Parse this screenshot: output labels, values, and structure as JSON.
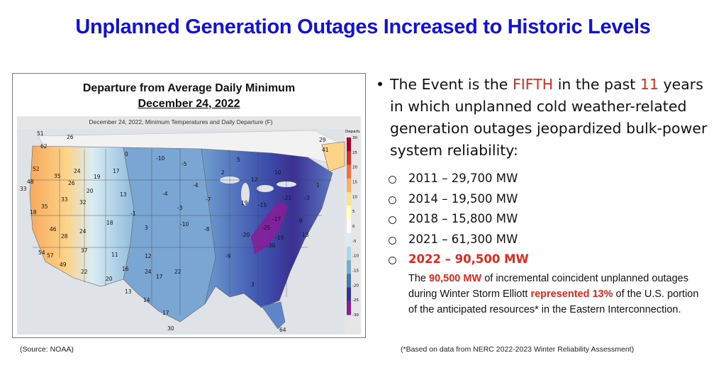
{
  "title": "Unplanned Generation Outages Increased to Historic Levels",
  "map": {
    "heading_line1": "Departure from Average Daily Minimum",
    "heading_line2": "December 24, 2022",
    "subtitle": "December 24, 2022, Minimum Temperatures and Daily Departure (F)",
    "legend_title": "Departure",
    "legend_ticks": [
      "30",
      "25",
      "20",
      "15",
      "10",
      "5",
      "0",
      "-5",
      "-10",
      "-15",
      "-20",
      "-25",
      "-30"
    ],
    "legend_colors": [
      "#a50026",
      "#d73027",
      "#f46d43",
      "#fdae61",
      "#fee090",
      "#ffffbf",
      "#ffffff",
      "#d8ecf4",
      "#abd9e9",
      "#74add1",
      "#4575b4",
      "#313695",
      "#8b1c9a"
    ],
    "values": [
      "51",
      "26",
      "62",
      "52",
      "35",
      "24",
      "17",
      "48",
      "26",
      "33",
      "19",
      "20",
      "18",
      "33",
      "32",
      "13",
      "35",
      "28",
      "24",
      "18",
      "46",
      "54",
      "37",
      "11",
      "57",
      "49",
      "22",
      "16",
      "12",
      "24",
      "20",
      "17",
      "22",
      "13",
      "14",
      "17",
      "30",
      "0",
      "-10",
      "-5",
      "-4",
      "-3",
      "-10",
      "-8",
      "3",
      "-1",
      "-4",
      "-7",
      "2",
      "5",
      "12",
      "10",
      "19",
      "-9",
      "-15",
      "-17",
      "-20",
      "-19",
      "-25",
      "-30",
      "-21",
      "-9",
      "-3",
      "13",
      "1",
      "3",
      "64",
      "29",
      "41"
    ]
  },
  "bullet": {
    "line1_pre": "The Event is the ",
    "line1_hl": "FIFTH",
    "line1_mid": " in the past ",
    "line1_hl2": "11",
    "line1_post": " years in which unplanned cold weather-related generation outages jeopardized bulk-power system reliability:"
  },
  "items": [
    "2011 – 29,700 MW",
    "2014 – 19,500 MW",
    "2018 – 15,800 MW",
    "2021 – 61,300 MW",
    "2022 – 90,500 MW"
  ],
  "note": {
    "pre": "The ",
    "hl1": "90,500 MW",
    "mid": " of incremental coincident unplanned outages during Winter Storm Elliott ",
    "hl2": "represented 13%",
    "post": " of the U.S. portion of the anticipated resources* in the Eastern Interconnection."
  },
  "source": "(Source: NOAA)",
  "footnote": "(*Based on data from NERC 2022-2023 Winter Reliability Assessment)"
}
